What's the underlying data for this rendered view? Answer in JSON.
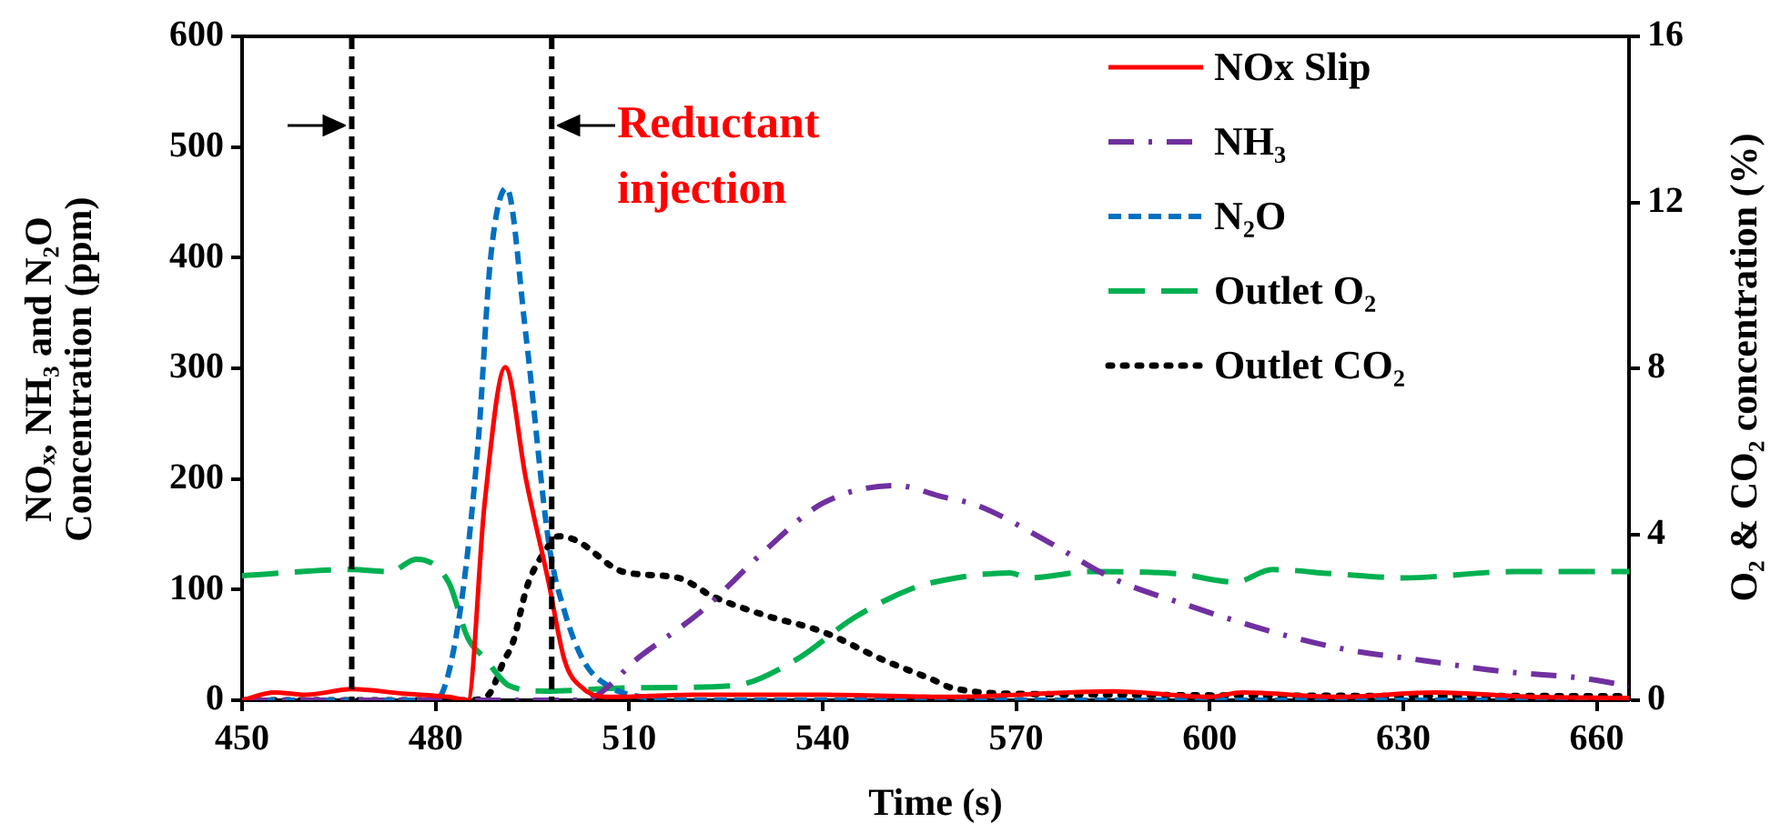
{
  "chart_data": {
    "type": "line",
    "xlabel": "Time (s)",
    "ylabel": "NOₓ, NH₃ and N₂O Concentration (ppm)",
    "y2label": "O₂ & CO₂ concentration (%)",
    "xlim": [
      450,
      665
    ],
    "xticks": [
      450,
      480,
      510,
      540,
      570,
      600,
      630,
      660
    ],
    "ylim": [
      0,
      600
    ],
    "yticks": [
      0,
      100,
      200,
      300,
      400,
      500,
      600
    ],
    "y2lim": [
      0,
      16
    ],
    "y2ticks": [
      0,
      4,
      8,
      12,
      16
    ],
    "grid": false,
    "legend": "top right",
    "marker": "none",
    "series": [
      {
        "name": "NOx Slip",
        "color": "#ff0000",
        "line_style": "solid",
        "x": [
          450,
          455,
          460,
          467,
          475,
          482,
          485,
          487.6,
          490.8,
          494,
          497.5,
          500,
          503,
          507,
          520,
          540,
          560,
          585,
          600,
          605,
          620,
          635,
          650,
          665
        ],
        "values": [
          0,
          7,
          5,
          10,
          6,
          3,
          0,
          178,
          301,
          200,
          107,
          36,
          10,
          3,
          5,
          5,
          3,
          8,
          3,
          7,
          3,
          7,
          3,
          2
        ]
      },
      {
        "name": "NH₃",
        "color": "#7030a0",
        "line_style": "dashdot",
        "x": [
          450,
          500,
          502.7,
          512,
          521.5,
          531,
          540,
          551.4,
          558.5,
          564,
          575,
          585,
          596.5,
          609,
          621,
          633,
          645.5,
          657.6,
          665
        ],
        "values": [
          0,
          0,
          0,
          41,
          82,
          135,
          178,
          194,
          184,
          176,
          143,
          110,
          86,
          63,
          46,
          36,
          26,
          20,
          13
        ]
      },
      {
        "name": "N₂O",
        "color": "#0070c0",
        "line_style": "dashed",
        "x": [
          450,
          480,
          483.5,
          486.6,
          488.5,
          491,
          494,
          497.6,
          500,
          503,
          507,
          512,
          520,
          665
        ],
        "values": [
          0,
          0,
          69,
          233,
          398,
          463,
          330,
          140,
          80,
          35,
          12,
          3,
          0,
          0
        ]
      },
      {
        "name": "Outlet O₂",
        "color": "#00b050",
        "line_style": "longdash",
        "axis": "y2",
        "x": [
          450,
          467,
          473,
          477,
          482,
          485,
          487.7,
          491.4,
          497,
          510,
          526,
          535.6,
          545,
          554,
          559,
          569,
          572,
          581.5,
          594.7,
          604,
          609.7,
          619,
          630,
          647,
          665
        ],
        "values": [
          3.0,
          3.15,
          3.1,
          3.4,
          2.85,
          1.5,
          1.0,
          0.35,
          0.22,
          0.3,
          0.35,
          0.95,
          2.0,
          2.7,
          2.9,
          3.07,
          2.95,
          3.1,
          3.05,
          2.85,
          3.15,
          3.05,
          2.95,
          3.1,
          3.1
        ]
      },
      {
        "name": "Outlet CO₂",
        "color": "#000000",
        "line_style": "dotted",
        "axis": "y2",
        "x": [
          450,
          485,
          488,
          490.6,
          492,
          494.2,
          497,
          499,
          501.8,
          509,
          517.6,
          523,
          531,
          540,
          549.7,
          557,
          560,
          572,
          665
        ],
        "values": [
          0,
          0,
          0.1,
          0.95,
          1.4,
          2.75,
          3.6,
          3.95,
          3.85,
          3.1,
          2.95,
          2.5,
          2.05,
          1.65,
          0.95,
          0.5,
          0.3,
          0.15,
          0.1
        ]
      }
    ],
    "ref_lines": [
      {
        "axis": "x",
        "value": 467,
        "color": "#000000",
        "line_style": "dashed"
      },
      {
        "axis": "x",
        "value": 498,
        "color": "#000000",
        "line_style": "dashed"
      }
    ],
    "annotations": [
      {
        "text": "Reductant injection",
        "x": 498,
        "y": 490
      }
    ]
  }
}
